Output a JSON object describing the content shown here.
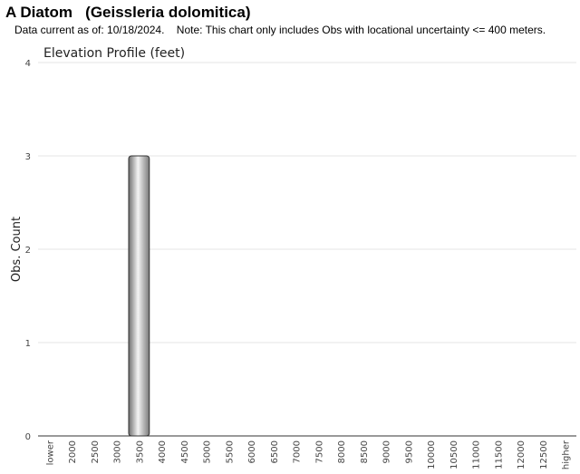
{
  "page": {
    "title": "A Diatom   (Geissleria dolomitica)",
    "note": "Data current as of: 10/18/2024.    Note: This chart only includes Obs with locational uncertainty <= 400 meters."
  },
  "chart_data": {
    "type": "bar",
    "title": "Elevation Profile (feet)",
    "xlabel": "",
    "ylabel": "Obs. Count",
    "categories": [
      "lower",
      "2000",
      "2500",
      "3000",
      "3500",
      "4000",
      "4500",
      "5000",
      "5500",
      "6000",
      "6500",
      "7000",
      "7500",
      "8000",
      "8500",
      "9000",
      "9500",
      "10000",
      "10500",
      "11000",
      "11500",
      "12000",
      "12500",
      "higher"
    ],
    "values": [
      0,
      0,
      0,
      0,
      3,
      0,
      0,
      0,
      0,
      0,
      0,
      0,
      0,
      0,
      0,
      0,
      0,
      0,
      0,
      0,
      0,
      0,
      0,
      0
    ],
    "ylim": [
      0,
      4
    ],
    "yticks": [
      0,
      1,
      2,
      3,
      4
    ],
    "grid": true,
    "legend": "none",
    "colors": {
      "bar": "#999999",
      "bar_edge": "#333333",
      "grid": "#e6e6e6",
      "axis": "#333333"
    }
  }
}
